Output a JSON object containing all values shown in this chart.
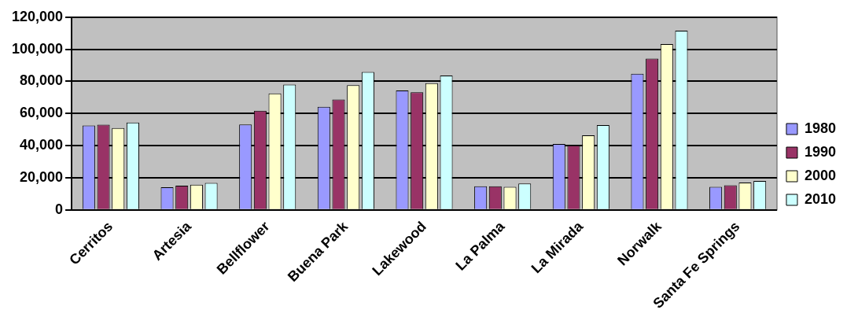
{
  "chart_data": {
    "type": "bar",
    "categories": [
      "Cerritos",
      "Artesia",
      "Bellflower",
      "Buena Park",
      "Lakewood",
      "La Palma",
      "La Mirada",
      "Norwalk",
      "Santa Fe Springs"
    ],
    "series": [
      {
        "name": "1980",
        "color": "#9999ff",
        "values": [
          52600,
          14100,
          53200,
          64200,
          74300,
          14700,
          41000,
          84700,
          14300
        ]
      },
      {
        "name": "1990",
        "color": "#993366",
        "values": [
          53000,
          15100,
          61700,
          68700,
          73300,
          14700,
          40200,
          94200,
          15300
        ]
      },
      {
        "name": "2000",
        "color": "#ffffcc",
        "values": [
          50900,
          15700,
          72500,
          77600,
          78900,
          14300,
          46400,
          103300,
          17000
        ]
      },
      {
        "name": "2010",
        "color": "#ccffff",
        "values": [
          54400,
          16800,
          78000,
          85900,
          83600,
          16400,
          52800,
          111600,
          18000
        ]
      }
    ],
    "ylim": [
      0,
      120000
    ],
    "yticks": [
      {
        "value": 0,
        "label": "0"
      },
      {
        "value": 20000,
        "label": "20,000"
      },
      {
        "value": 40000,
        "label": "40,000"
      },
      {
        "value": 60000,
        "label": "60,000"
      },
      {
        "value": 80000,
        "label": "80,000"
      },
      {
        "value": 100000,
        "label": "100,000"
      },
      {
        "value": 120000,
        "label": "120,000"
      }
    ],
    "grid": "y",
    "legend": "right"
  }
}
